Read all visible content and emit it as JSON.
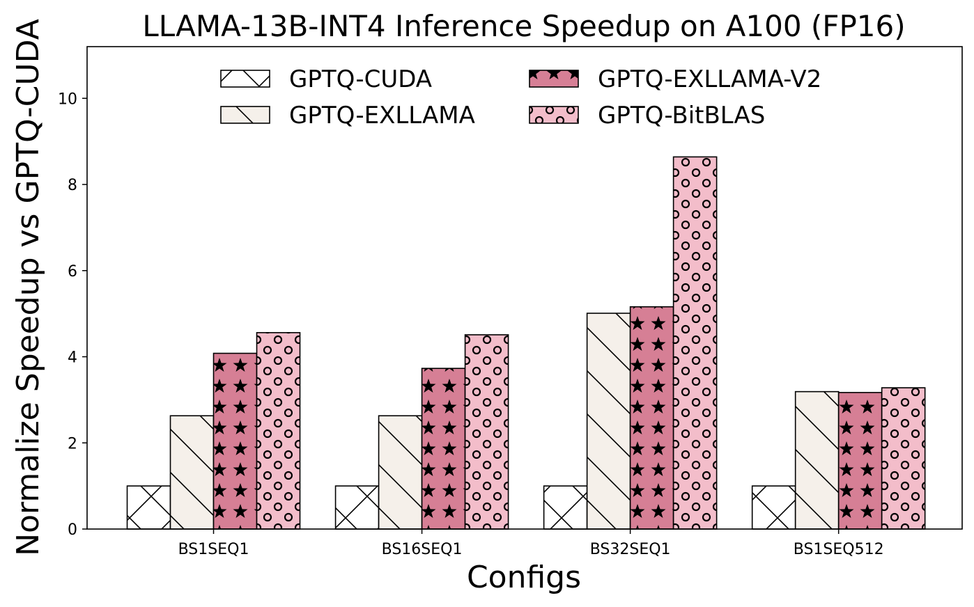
{
  "chart_data": {
    "type": "bar",
    "title": "LLAMA-13B-INT4 Inference Speedup on A100 (FP16)",
    "xlabel": "Configs",
    "ylabel": "Normalize Speedup vs GPTQ-CUDA",
    "ylim": [
      0,
      11.2
    ],
    "yticks": [
      "0",
      "2",
      "4",
      "6",
      "8",
      "10"
    ],
    "categories": [
      "BS1SEQ1",
      "BS16SEQ1",
      "BS32SEQ1",
      "BS1SEQ512"
    ],
    "grid": false,
    "legend_position": "top",
    "series": [
      {
        "name": "GPTQ-CUDA",
        "values": [
          1.0,
          1.0,
          1.0,
          1.0
        ],
        "color": "#ffffff",
        "hatch": "cross"
      },
      {
        "name": "GPTQ-EXLLAMA",
        "values": [
          2.63,
          2.63,
          5.01,
          3.19
        ],
        "color": "#f5f0ea",
        "hatch": "backslash"
      },
      {
        "name": "GPTQ-EXLLAMA-V2",
        "values": [
          4.08,
          3.73,
          5.16,
          3.17
        ],
        "color": "#d67f95",
        "hatch": "stars"
      },
      {
        "name": "GPTQ-BitBLAS",
        "values": [
          4.56,
          4.51,
          8.64,
          3.28
        ],
        "color": "#f3bdca",
        "hatch": "circles"
      }
    ]
  }
}
